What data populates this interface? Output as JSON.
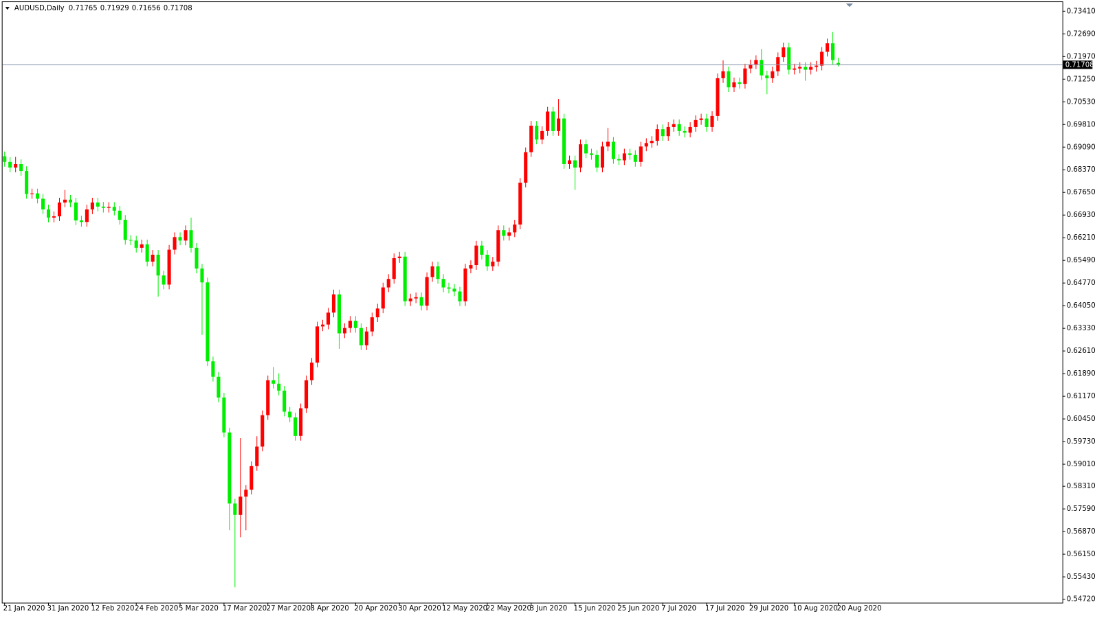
{
  "chart_data": {
    "type": "candlestick",
    "title": "AUDUSD,Daily",
    "up_color": "#ff0000",
    "down_color": "#00ee00",
    "categories": [
      "21 Jan 2020",
      null,
      null,
      null,
      null,
      null,
      null,
      null,
      "31 Jan 2020",
      null,
      null,
      null,
      null,
      null,
      null,
      null,
      "12 Feb 2020",
      null,
      null,
      null,
      null,
      null,
      null,
      null,
      "24 Feb 2020",
      null,
      null,
      null,
      null,
      null,
      null,
      null,
      "5 Mar 2020",
      null,
      null,
      null,
      null,
      null,
      null,
      null,
      "17 Mar 2020",
      null,
      null,
      null,
      null,
      null,
      null,
      null,
      "27 Mar 2020",
      null,
      null,
      null,
      null,
      null,
      null,
      null,
      "8 Apr 2020",
      null,
      null,
      null,
      null,
      null,
      null,
      null,
      "20 Apr 2020",
      null,
      null,
      null,
      null,
      null,
      null,
      null,
      "30 Apr 2020",
      null,
      null,
      null,
      null,
      null,
      null,
      null,
      "12 May 2020",
      null,
      null,
      null,
      null,
      null,
      null,
      null,
      "22 May 2020",
      null,
      null,
      null,
      null,
      null,
      null,
      null,
      "3 Jun 2020",
      null,
      null,
      null,
      null,
      null,
      null,
      null,
      "15 Jun 2020",
      null,
      null,
      null,
      null,
      null,
      null,
      null,
      "25 Jun 2020",
      null,
      null,
      null,
      null,
      null,
      null,
      null,
      "7 Jul 2020",
      null,
      null,
      null,
      null,
      null,
      null,
      null,
      "17 Jul 2020",
      null,
      null,
      null,
      null,
      null,
      null,
      null,
      "29 Jul 2020",
      null,
      null,
      null,
      null,
      null,
      null,
      null,
      "10 Aug 2020",
      null,
      null,
      null,
      null,
      null,
      null,
      null,
      "20 Aug 2020"
    ],
    "open": [
      0.688,
      0.6862,
      0.6844,
      0.6855,
      0.6833,
      0.676,
      0.6762,
      0.6745,
      0.6711,
      0.6685,
      0.6689,
      0.6733,
      0.6742,
      0.6733,
      0.6676,
      0.6671,
      0.6711,
      0.6733,
      0.672,
      0.6716,
      0.6719,
      0.6707,
      0.6678,
      0.6614,
      0.6612,
      0.6589,
      0.66,
      0.6545,
      0.6567,
      0.6501,
      0.6472,
      0.6583,
      0.6623,
      0.6612,
      0.6645,
      0.6589,
      0.6523,
      0.6479,
      0.6228,
      0.6179,
      0.6113,
      0.6002,
      0.5776,
      0.574,
      0.5798,
      0.582,
      0.5895,
      0.5957,
      0.6057,
      0.6168,
      0.6157,
      0.6135,
      0.6068,
      0.605,
      0.5991,
      0.6079,
      0.6168,
      0.6224,
      0.6339,
      0.6345,
      0.6383,
      0.6441,
      0.6317,
      0.6334,
      0.6357,
      0.6334,
      0.6279,
      0.6323,
      0.6368,
      0.6396,
      0.6463,
      0.649,
      0.6556,
      0.6561,
      0.6419,
      0.6428,
      0.6432,
      0.6405,
      0.6496,
      0.653,
      0.649,
      0.6463,
      0.6459,
      0.645,
      0.6419,
      0.6523,
      0.6534,
      0.6596,
      0.6567,
      0.653,
      0.6545,
      0.6645,
      0.6627,
      0.6638,
      0.6663,
      0.6796,
      0.6893,
      0.6977,
      0.6933,
      0.696,
      0.7022,
      0.696,
      0.7,
      0.6855,
      0.6867,
      0.6844,
      0.6918,
      0.6889,
      0.6884,
      0.6844,
      0.6911,
      0.6926,
      0.6871,
      0.6867,
      0.6889,
      0.6884,
      0.6862,
      0.6911,
      0.6922,
      0.6929,
      0.6966,
      0.6944,
      0.6973,
      0.6982,
      0.696,
      0.6955,
      0.6973,
      0.6995,
      0.7,
      0.6973,
      0.7008,
      0.7128,
      0.715,
      0.7099,
      0.7115,
      0.711,
      0.7159,
      0.7172,
      0.7186,
      0.7137,
      0.7128,
      0.715,
      0.7195,
      0.7226,
      0.7155,
      0.7159,
      0.7164,
      0.7155,
      0.7164,
      0.7168,
      0.7212,
      0.7239,
      0.71765
    ],
    "high": [
      0.6895,
      0.6877,
      0.6878,
      0.687,
      0.6848,
      0.6777,
      0.6777,
      0.676,
      0.6726,
      0.6704,
      0.6748,
      0.6773,
      0.6757,
      0.6748,
      0.6691,
      0.6726,
      0.6748,
      0.6748,
      0.6735,
      0.6734,
      0.6734,
      0.6722,
      0.6693,
      0.6629,
      0.6627,
      0.6615,
      0.6615,
      0.6582,
      0.6582,
      0.6516,
      0.6598,
      0.6638,
      0.6638,
      0.666,
      0.6685,
      0.6604,
      0.6538,
      0.6494,
      0.6243,
      0.6194,
      0.6128,
      0.6017,
      0.5791,
      0.5984,
      0.5835,
      0.591,
      0.599,
      0.6072,
      0.6183,
      0.621,
      0.619,
      0.615,
      0.6083,
      0.6065,
      0.6094,
      0.6183,
      0.6239,
      0.6354,
      0.636,
      0.6398,
      0.6456,
      0.6456,
      0.6349,
      0.6372,
      0.6372,
      0.6349,
      0.6338,
      0.6383,
      0.6411,
      0.6478,
      0.6505,
      0.6571,
      0.6576,
      0.6576,
      0.6443,
      0.6447,
      0.6447,
      0.6511,
      0.6545,
      0.6545,
      0.6505,
      0.6478,
      0.6474,
      0.6465,
      0.6538,
      0.6549,
      0.6611,
      0.6611,
      0.6582,
      0.656,
      0.666,
      0.666,
      0.6653,
      0.6678,
      0.6811,
      0.6908,
      0.6992,
      0.6992,
      0.6975,
      0.7037,
      0.7037,
      0.7062,
      0.7015,
      0.6882,
      0.6882,
      0.6933,
      0.6933,
      0.6904,
      0.6899,
      0.6926,
      0.697,
      0.6941,
      0.6886,
      0.6904,
      0.6904,
      0.6899,
      0.6926,
      0.6937,
      0.6944,
      0.6981,
      0.6981,
      0.6988,
      0.6997,
      0.6997,
      0.6975,
      0.6988,
      0.701,
      0.7015,
      0.7015,
      0.7023,
      0.7143,
      0.7185,
      0.7165,
      0.713,
      0.713,
      0.7174,
      0.7187,
      0.7201,
      0.7221,
      0.7152,
      0.7165,
      0.721,
      0.7241,
      0.7241,
      0.7174,
      0.7179,
      0.7179,
      0.7179,
      0.7183,
      0.7227,
      0.7254,
      0.7275,
      0.71929
    ],
    "low": [
      0.6847,
      0.6829,
      0.6829,
      0.6818,
      0.6745,
      0.6745,
      0.673,
      0.6696,
      0.667,
      0.667,
      0.6674,
      0.6718,
      0.6718,
      0.6661,
      0.6656,
      0.6656,
      0.6696,
      0.6705,
      0.6701,
      0.6701,
      0.6692,
      0.6663,
      0.6599,
      0.6597,
      0.6574,
      0.6574,
      0.653,
      0.653,
      0.6434,
      0.6457,
      0.6457,
      0.6568,
      0.6597,
      0.6597,
      0.6574,
      0.6508,
      0.6312,
      0.6213,
      0.6164,
      0.6098,
      0.5987,
      0.5691,
      0.551,
      0.5669,
      0.5691,
      0.5805,
      0.588,
      0.5942,
      0.6042,
      0.6142,
      0.612,
      0.6053,
      0.6035,
      0.5976,
      0.5976,
      0.6064,
      0.6153,
      0.6209,
      0.6324,
      0.633,
      0.6368,
      0.6268,
      0.6302,
      0.6319,
      0.6319,
      0.6264,
      0.6264,
      0.6308,
      0.6353,
      0.6381,
      0.6448,
      0.6475,
      0.6541,
      0.6404,
      0.6404,
      0.6413,
      0.639,
      0.639,
      0.6481,
      0.6475,
      0.6448,
      0.6444,
      0.6435,
      0.6404,
      0.6404,
      0.6508,
      0.6519,
      0.6552,
      0.6515,
      0.6515,
      0.653,
      0.6612,
      0.6612,
      0.6623,
      0.6648,
      0.6781,
      0.6878,
      0.6918,
      0.6918,
      0.6945,
      0.6945,
      0.6945,
      0.684,
      0.684,
      0.6773,
      0.6829,
      0.6874,
      0.6869,
      0.6829,
      0.6829,
      0.6896,
      0.6856,
      0.6852,
      0.6852,
      0.6869,
      0.6847,
      0.6847,
      0.6896,
      0.6907,
      0.6914,
      0.6929,
      0.6929,
      0.6958,
      0.6945,
      0.694,
      0.694,
      0.6958,
      0.698,
      0.6958,
      0.6958,
      0.6993,
      0.7113,
      0.7084,
      0.7084,
      0.7095,
      0.7095,
      0.7144,
      0.7157,
      0.7122,
      0.7077,
      0.7113,
      0.7135,
      0.718,
      0.714,
      0.714,
      0.7144,
      0.712,
      0.714,
      0.7149,
      0.7153,
      0.7197,
      0.7171,
      0.71656
    ],
    "close": [
      0.6862,
      0.6844,
      0.6855,
      0.6833,
      0.676,
      0.6762,
      0.6745,
      0.6711,
      0.6685,
      0.6689,
      0.6733,
      0.6742,
      0.6733,
      0.6676,
      0.6671,
      0.6711,
      0.6733,
      0.672,
      0.6716,
      0.6719,
      0.6707,
      0.6678,
      0.6614,
      0.6612,
      0.6589,
      0.66,
      0.6545,
      0.6567,
      0.6501,
      0.6472,
      0.6583,
      0.6623,
      0.6612,
      0.6645,
      0.6589,
      0.6523,
      0.6479,
      0.6228,
      0.6179,
      0.6113,
      0.6002,
      0.5776,
      0.574,
      0.5798,
      0.582,
      0.5895,
      0.5957,
      0.6057,
      0.6168,
      0.6157,
      0.6135,
      0.6068,
      0.605,
      0.5991,
      0.6079,
      0.6168,
      0.6224,
      0.6339,
      0.6345,
      0.6383,
      0.6441,
      0.6317,
      0.6334,
      0.6357,
      0.6334,
      0.6279,
      0.6323,
      0.6368,
      0.6396,
      0.6463,
      0.649,
      0.6556,
      0.6561,
      0.6419,
      0.6428,
      0.6432,
      0.6405,
      0.6496,
      0.653,
      0.649,
      0.6463,
      0.6459,
      0.645,
      0.6419,
      0.6523,
      0.6534,
      0.6596,
      0.6567,
      0.653,
      0.6545,
      0.6645,
      0.6627,
      0.6638,
      0.6663,
      0.6796,
      0.6893,
      0.6977,
      0.6933,
      0.696,
      0.7022,
      0.696,
      0.7,
      0.6855,
      0.6867,
      0.6844,
      0.6918,
      0.6889,
      0.6884,
      0.6844,
      0.6911,
      0.6926,
      0.6871,
      0.6867,
      0.6889,
      0.6884,
      0.6862,
      0.6911,
      0.6922,
      0.6929,
      0.6966,
      0.6944,
      0.6973,
      0.6982,
      0.696,
      0.6955,
      0.6973,
      0.6995,
      0.7,
      0.6973,
      0.7008,
      0.7128,
      0.715,
      0.7099,
      0.7115,
      0.711,
      0.7159,
      0.7172,
      0.7186,
      0.7137,
      0.7128,
      0.715,
      0.7195,
      0.7226,
      0.7155,
      0.7159,
      0.7164,
      0.7155,
      0.7164,
      0.7168,
      0.7212,
      0.7239,
      0.7186,
      0.71708
    ],
    "ylim": [
      0.5461,
      0.737
    ],
    "yticks": [
      {
        "value": 0.7341,
        "label": "0.73410"
      },
      {
        "value": 0.7269,
        "label": "0.72690"
      },
      {
        "value": 0.7197,
        "label": "0.71970"
      },
      {
        "value": 0.7125,
        "label": "0.71250"
      },
      {
        "value": 0.7053,
        "label": "0.70530"
      },
      {
        "value": 0.6981,
        "label": "0.69810"
      },
      {
        "value": 0.6909,
        "label": "0.69090"
      },
      {
        "value": 0.6837,
        "label": "0.68370"
      },
      {
        "value": 0.6765,
        "label": "0.67650"
      },
      {
        "value": 0.6693,
        "label": "0.66930"
      },
      {
        "value": 0.6621,
        "label": "0.66210"
      },
      {
        "value": 0.6549,
        "label": "0.65490"
      },
      {
        "value": 0.6477,
        "label": "0.64770"
      },
      {
        "value": 0.6405,
        "label": "0.64050"
      },
      {
        "value": 0.6333,
        "label": "0.63330"
      },
      {
        "value": 0.6261,
        "label": "0.62610"
      },
      {
        "value": 0.6189,
        "label": "0.61890"
      },
      {
        "value": 0.6117,
        "label": "0.61170"
      },
      {
        "value": 0.6045,
        "label": "0.60450"
      },
      {
        "value": 0.5973,
        "label": "0.59730"
      },
      {
        "value": 0.5901,
        "label": "0.59010"
      },
      {
        "value": 0.5831,
        "label": "0.58310"
      },
      {
        "value": 0.5759,
        "label": "0.57590"
      },
      {
        "value": 0.5687,
        "label": "0.56870"
      },
      {
        "value": 0.5615,
        "label": "0.56150"
      },
      {
        "value": 0.5543,
        "label": "0.55430"
      },
      {
        "value": 0.5472,
        "label": "0.54720"
      }
    ],
    "grid": false
  }
}
